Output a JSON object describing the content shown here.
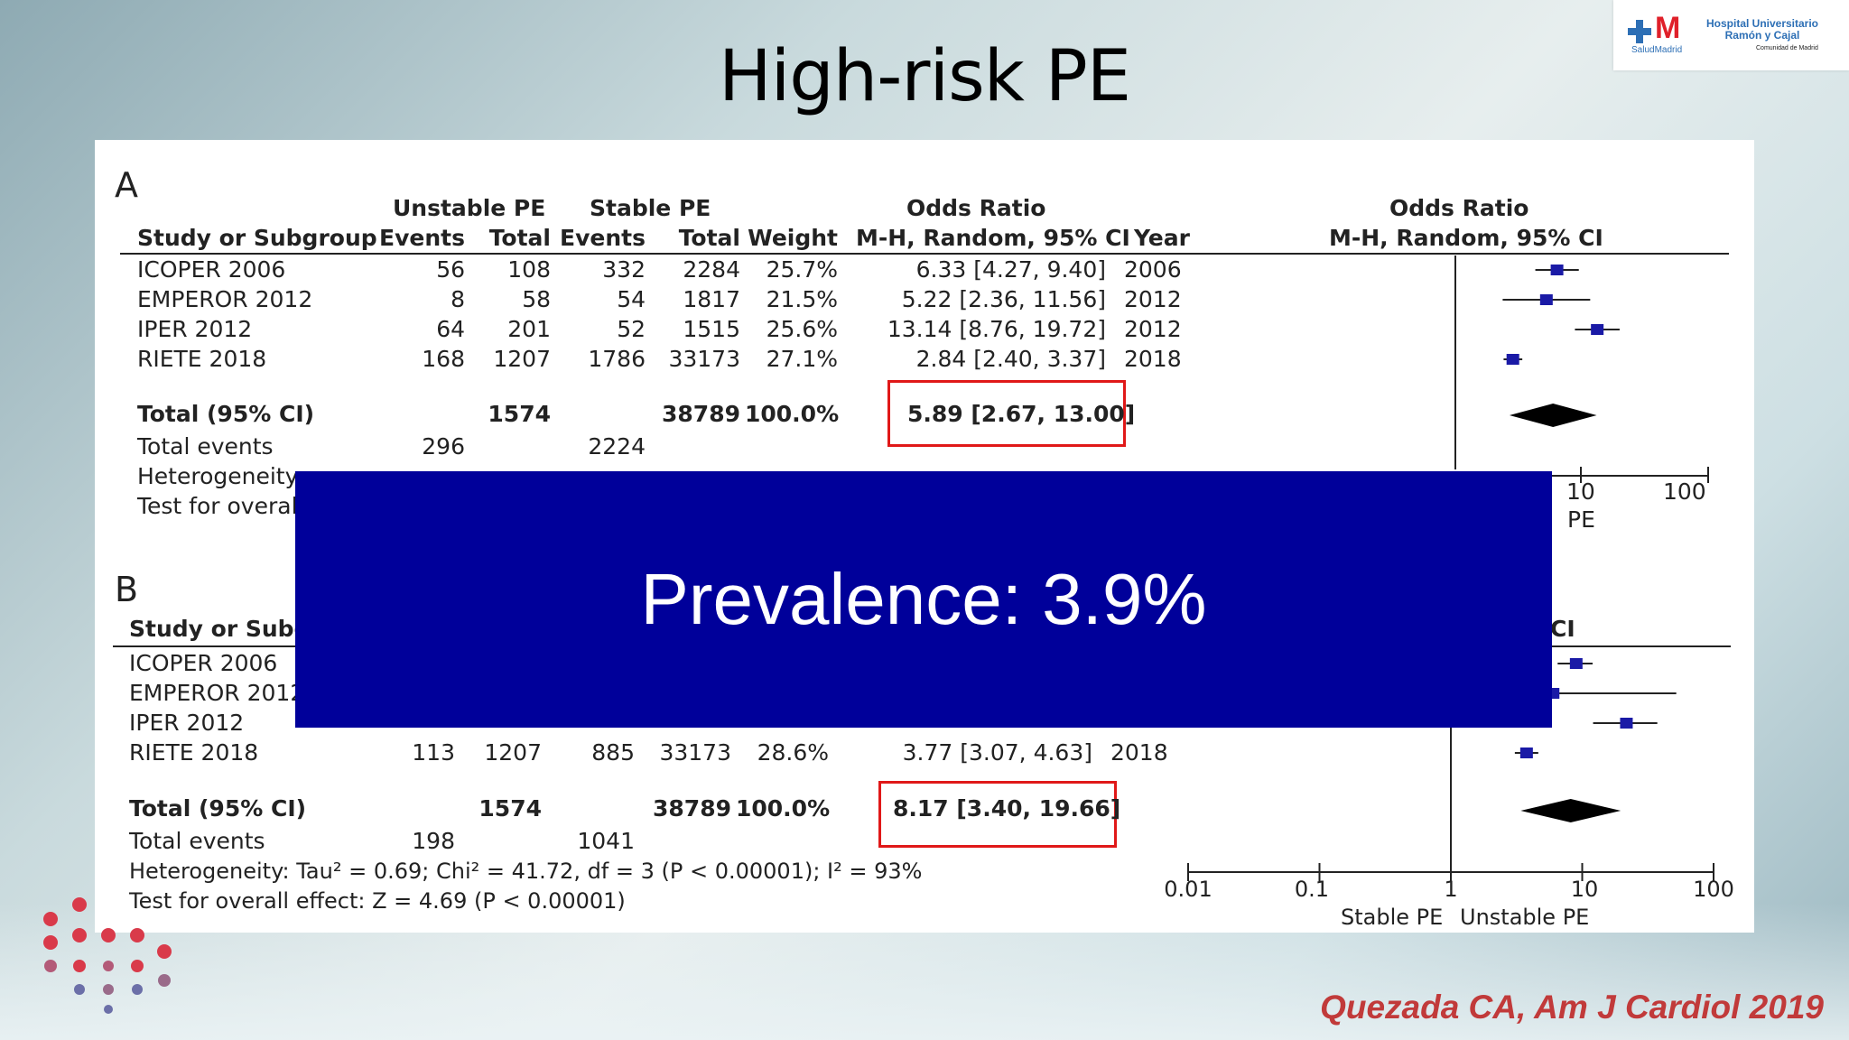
{
  "slide": {
    "title": "High-risk PE",
    "overlay_text": "Prevalence: 3.9%",
    "citation": "Quezada CA, Am J Cardiol 2019"
  },
  "logo": {
    "text": "Hospital Universitario Ramón y Cajal",
    "brand": "SaludMadrid",
    "community": "Comunidad de Madrid"
  },
  "colors": {
    "overlay": "#00009a",
    "highlight_box": "#e01818",
    "marker": "#1a1aa6",
    "citation": "#c13a3a"
  },
  "panel_a": {
    "label": "A",
    "group1": "Unstable PE",
    "group2": "Stable PE",
    "or_header": "Odds Ratio",
    "col_study": "Study or Subgroup",
    "col_events1": "Events",
    "col_total1": "Total",
    "col_events2": "Events",
    "col_total2": "Total",
    "col_weight": "Weight",
    "col_method": "M-H, Random, 95% CI",
    "col_year": "Year",
    "plot_header": "Odds Ratio",
    "plot_method": "M-H, Random, 95% CI",
    "rows": [
      {
        "study": "ICOPER 2006",
        "e1": "56",
        "t1": "108",
        "e2": "332",
        "t2": "2284",
        "w": "25.7%",
        "ci": "6.33 [4.27, 9.40]",
        "year": "2006"
      },
      {
        "study": "EMPEROR 2012",
        "e1": "8",
        "t1": "58",
        "e2": "54",
        "t2": "1817",
        "w": "21.5%",
        "ci": "5.22 [2.36, 11.56]",
        "year": "2012"
      },
      {
        "study": "IPER 2012",
        "e1": "64",
        "t1": "201",
        "e2": "52",
        "t2": "1515",
        "w": "25.6%",
        "ci": "13.14 [8.76, 19.72]",
        "year": "2012"
      },
      {
        "study": "RIETE 2018",
        "e1": "168",
        "t1": "1207",
        "e2": "1786",
        "t2": "33173",
        "w": "27.1%",
        "ci": "2.84 [2.40, 3.37]",
        "year": "2018"
      }
    ],
    "total_label": "Total (95% CI)",
    "total_t1": "1574",
    "total_t2": "38789",
    "total_w": "100.0%",
    "total_ci": "5.89 [2.67, 13.00]",
    "events_label": "Total events",
    "events1": "296",
    "events2": "2224",
    "heterogeneity_label": "Heterogeneity:",
    "test_label": "Test for overal",
    "axis_ticks_visible": [
      "10",
      "100"
    ],
    "axis_label_visible": "PE"
  },
  "panel_b": {
    "label": "B",
    "col_study": "Study or Subgr",
    "plot_method_fragment": "CI",
    "rows": [
      {
        "study": "ICOPER 2006"
      },
      {
        "study": "EMPEROR 2012"
      },
      {
        "study": "IPER 2012"
      },
      {
        "study": "RIETE 2018",
        "e1": "113",
        "t1": "1207",
        "e2": "885",
        "t2": "33173",
        "w": "28.6%",
        "ci": "3.77 [3.07, 4.63]",
        "year": "2018"
      }
    ],
    "total_label": "Total (95% CI)",
    "total_t1": "1574",
    "total_t2": "38789",
    "total_w": "100.0%",
    "total_ci": "8.17 [3.40, 19.66]",
    "events_label": "Total events",
    "events1": "198",
    "events2": "1041",
    "heterogeneity": "Heterogeneity: Tau² = 0.69; Chi² = 41.72, df = 3 (P < 0.00001); I² = 93%",
    "test": "Test for overall effect: Z = 4.69 (P < 0.00001)",
    "axis_ticks": [
      "0.01",
      "0.1",
      "1",
      "10",
      "100"
    ],
    "axis_left_label": "Stable PE",
    "axis_right_label": "Unstable PE"
  },
  "chart_data": [
    {
      "type": "scatter",
      "title": "",
      "xscale": "log",
      "xlim": [
        0.01,
        100
      ],
      "series": [
        {
          "name": "A",
          "estimates": [
            6.33,
            5.22,
            13.14,
            2.84
          ],
          "lower": [
            4.27,
            2.36,
            8.76,
            2.4
          ],
          "upper": [
            9.4,
            11.56,
            19.72,
            3.37
          ],
          "pooled": [
            5.89,
            2.67,
            13.0
          ]
        }
      ]
    },
    {
      "type": "scatter",
      "title": "",
      "xscale": "log",
      "xlim": [
        0.01,
        100
      ],
      "series": [
        {
          "name": "B",
          "estimates": [
            9.0,
            6.0,
            21.7,
            3.77
          ],
          "lower": [
            6.5,
            0.8,
            12.1,
            3.07
          ],
          "upper": [
            12.0,
            52.0,
            37.3,
            4.63
          ],
          "pooled": [
            8.17,
            3.4,
            19.66
          ]
        }
      ]
    }
  ]
}
